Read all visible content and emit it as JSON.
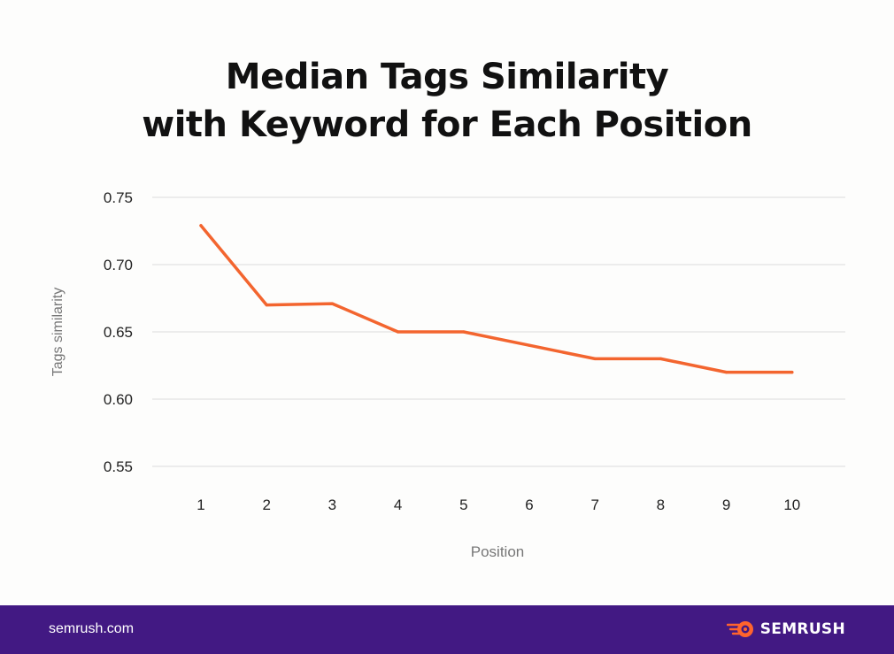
{
  "title_lines": [
    "Median Tags Similarity",
    "with Keyword for Each Position"
  ],
  "chart_data": {
    "type": "line",
    "title": "Median Tags Similarity with Keyword for Each Position",
    "xlabel": "Position",
    "ylabel": "Tags similarity",
    "categories": [
      "1",
      "2",
      "3",
      "4",
      "5",
      "6",
      "7",
      "8",
      "9",
      "10"
    ],
    "series": [
      {
        "values": [
          0.729,
          0.67,
          0.671,
          0.65,
          0.65,
          0.64,
          0.63,
          0.63,
          0.62,
          0.62
        ],
        "color": "#f3652f"
      }
    ],
    "ylim": [
      0.55,
      0.75
    ],
    "yticks": [
      "0.75",
      "0.70",
      "0.65",
      "0.60",
      "0.55"
    ],
    "grid": true,
    "legend": "none"
  },
  "footer": {
    "site": "semrush.com",
    "brand": "SEMRUSH",
    "brand_icon": "semrush-fireball-icon",
    "background": "#421983",
    "icon_color": "#ff642d"
  }
}
